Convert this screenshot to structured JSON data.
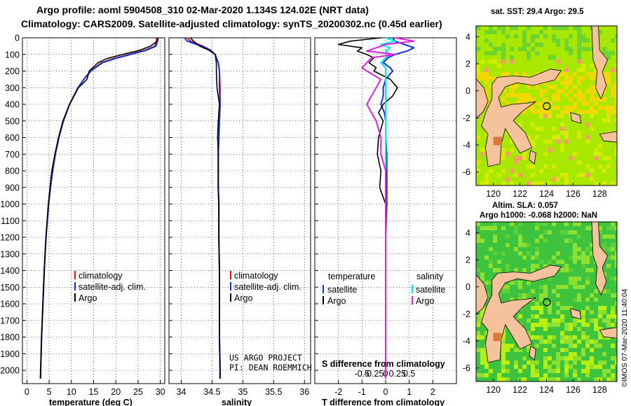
{
  "header": {
    "line1": "Argo profile: aoml 5904508_310 02-Mar-2020 1.134S 124.02E (NRT data)",
    "line2": "Climatology: CARS2009. Satellite-adjusted climatology: synTS_20200302.nc (0.45d earlier)"
  },
  "colors": {
    "climatology": "#e01010",
    "satellite": "#1030e0",
    "argo": "#000000",
    "satellite_salinity": "#00e8f0",
    "argo_salinity": "#e020e0",
    "land": "#f4c39c",
    "sea_green": "#3cc43c",
    "sea_yellow": "#d8f000"
  },
  "credits": {
    "project": "US ARGO PROJECT",
    "pi": "PI: DEAN ROEMMICH",
    "watermark": "©IMOS 07-Mar-2020 11:40:04"
  },
  "depth_ticks": [
    0,
    100,
    200,
    300,
    400,
    500,
    600,
    700,
    800,
    900,
    1000,
    1100,
    1200,
    1300,
    1400,
    1500,
    1600,
    1700,
    1800,
    1900,
    2000
  ],
  "chart_data": [
    {
      "type": "line",
      "id": "temperature",
      "xlabel": "temperature (deg C)",
      "ylabel": "",
      "xlim": [
        -1,
        31
      ],
      "ylim": [
        2080,
        0
      ],
      "xticks": [
        0,
        5,
        10,
        15,
        20,
        25,
        30
      ],
      "legend": [
        "climatology",
        "satellite-adj. clim.",
        "Argo"
      ],
      "depth": [
        0,
        20,
        50,
        75,
        100,
        125,
        150,
        200,
        250,
        300,
        400,
        500,
        600,
        700,
        800,
        900,
        1000,
        1200,
        1400,
        1600,
        1800,
        2000,
        2050
      ],
      "series": [
        {
          "name": "climatology",
          "values": [
            29.2,
            29.1,
            28.8,
            26.5,
            23.0,
            19.5,
            16.8,
            14.3,
            12.8,
            11.5,
            9.6,
            8.2,
            7.2,
            6.4,
            5.8,
            5.3,
            4.9,
            4.3,
            3.9,
            3.6,
            3.3,
            3.1,
            3.05
          ]
        },
        {
          "name": "satellite-adj. clim.",
          "values": [
            29.5,
            29.4,
            29.0,
            26.8,
            23.3,
            19.8,
            17.0,
            14.4,
            12.8,
            11.5,
            9.6,
            8.2,
            7.2,
            6.4,
            5.8,
            5.3,
            4.9,
            4.3,
            3.9,
            3.6,
            3.3,
            3.1,
            3.05
          ]
        },
        {
          "name": "Argo",
          "values": [
            29.4,
            29.3,
            27.8,
            25.4,
            21.5,
            18.0,
            16.0,
            14.0,
            13.5,
            11.6,
            9.6,
            8.1,
            7.1,
            6.3,
            5.6,
            5.2,
            4.8,
            4.3,
            3.9,
            3.6,
            3.3,
            3.1,
            3.05
          ]
        }
      ]
    },
    {
      "type": "line",
      "id": "salinity",
      "xlabel": "salinity",
      "xlim": [
        33.8,
        36.1
      ],
      "ylim": [
        2080,
        0
      ],
      "xticks": [
        34,
        34.5,
        35,
        35.5,
        36
      ],
      "legend": [
        "climatology",
        "satellite-adj. clim.",
        "Argo"
      ],
      "depth": [
        0,
        20,
        50,
        75,
        100,
        150,
        200,
        300,
        400,
        500,
        600,
        700,
        800,
        900,
        1000,
        1200,
        1400,
        1600,
        1800,
        2000,
        2050
      ],
      "series": [
        {
          "name": "climatology",
          "values": [
            34.1,
            34.15,
            34.35,
            34.48,
            34.55,
            34.6,
            34.62,
            34.63,
            34.63,
            34.62,
            34.61,
            34.6,
            34.6,
            34.6,
            34.61,
            34.61,
            34.62,
            34.62,
            34.62,
            34.63,
            34.63
          ]
        },
        {
          "name": "satellite-adj. clim.",
          "values": [
            34.05,
            34.1,
            34.33,
            34.47,
            34.55,
            34.6,
            34.62,
            34.62,
            34.63,
            34.62,
            34.61,
            34.6,
            34.6,
            34.6,
            34.61,
            34.61,
            34.62,
            34.62,
            34.62,
            34.63,
            34.63
          ]
        },
        {
          "name": "Argo",
          "values": [
            34.15,
            34.2,
            34.3,
            34.45,
            34.55,
            34.57,
            34.57,
            34.58,
            34.62,
            34.6,
            34.59,
            34.6,
            34.6,
            34.6,
            34.61,
            34.61,
            34.62,
            34.62,
            34.62,
            34.63,
            34.63
          ]
        }
      ]
    },
    {
      "type": "line",
      "id": "difference",
      "xlabel": "T difference from climatology",
      "subtitle": "S difference from climatology",
      "xlim": [
        -3,
        3
      ],
      "ylim": [
        2080,
        0
      ],
      "xticks": [
        -2,
        -1,
        0,
        1,
        2
      ],
      "xticks_salinity": [
        "-0.5",
        "-0.25",
        "0",
        "0.25",
        "0.5"
      ],
      "legend_temperature_title": "temperature",
      "legend_salinity_title": "salinity",
      "legend_temperature": [
        "satellite",
        "Argo"
      ],
      "legend_salinity": [
        "satellite",
        "Argo"
      ],
      "depth": [
        0,
        20,
        40,
        60,
        80,
        100,
        120,
        150,
        180,
        200,
        250,
        300,
        350,
        400,
        450,
        500,
        600,
        700,
        800,
        900,
        1000,
        1200,
        1400,
        1600,
        1800,
        2000,
        2050
      ],
      "series": [
        {
          "name": "temperature satellite",
          "values": [
            0.3,
            0.4,
            0.8,
            1.2,
            0.9,
            0.4,
            0.1,
            -0.1,
            0.2,
            0.3,
            0.0,
            -0.1,
            -0.1,
            -0.2,
            -0.05,
            0.0,
            0.0,
            0.05,
            0.05,
            0.05,
            0.05,
            0.0,
            0.0,
            0.0,
            0.0,
            0.0,
            0.0
          ]
        },
        {
          "name": "temperature Argo",
          "values": [
            -0.2,
            -1.5,
            -2.0,
            -1.0,
            -1.2,
            -0.8,
            -0.5,
            -0.7,
            -0.4,
            -0.5,
            0.2,
            0.5,
            0.3,
            -0.1,
            -0.3,
            -0.1,
            -0.3,
            -0.35,
            -0.2,
            -0.25,
            0.0,
            0.0,
            0.0,
            0.0,
            0.0,
            0.0,
            0.0
          ]
        },
        {
          "name": "salinity satellite",
          "values": [
            0.0,
            0.1,
            -0.05,
            0.05,
            0.0,
            0.05,
            0.0,
            -0.05,
            0.0,
            0.0,
            0.0,
            0.0,
            0.0,
            0.0,
            0.0,
            0.0,
            0.0,
            0.0,
            0.0,
            0.0,
            0.0,
            0.0,
            0.0,
            0.0,
            0.0,
            0.0,
            0.0
          ]
        },
        {
          "name": "salinity Argo",
          "values": [
            0.1,
            0.3,
            0.0,
            -0.1,
            -0.2,
            0.1,
            -0.15,
            -0.2,
            -0.25,
            -0.2,
            -0.05,
            -0.1,
            -0.15,
            -0.2,
            -0.15,
            -0.1,
            -0.05,
            -0.05,
            0.0,
            0.0,
            0.0,
            0.0,
            0.0,
            0.0,
            0.0,
            0.0,
            0.0
          ]
        }
      ]
    },
    {
      "type": "heatmap",
      "id": "map_sst",
      "title": "sat. SST: 29.4 Argo: 29.5",
      "xticks": [
        "120",
        "122",
        "124",
        "126",
        "128"
      ],
      "yticks": [
        "4",
        "2",
        "0",
        "-2",
        "-4",
        "-6"
      ],
      "float_position": {
        "lon": 124.02,
        "lat": -1.134
      }
    },
    {
      "type": "heatmap",
      "id": "map_sla",
      "title": "Altim. SLA: 0.057",
      "subtitle": "Argo h1000: -0.068 h2000: NaN",
      "xticks": [
        "120",
        "122",
        "124",
        "126",
        "128"
      ],
      "yticks": [
        "4",
        "2",
        "0",
        "-2",
        "-4",
        "-6"
      ],
      "float_position": {
        "lon": 124.02,
        "lat": -1.134
      }
    }
  ]
}
